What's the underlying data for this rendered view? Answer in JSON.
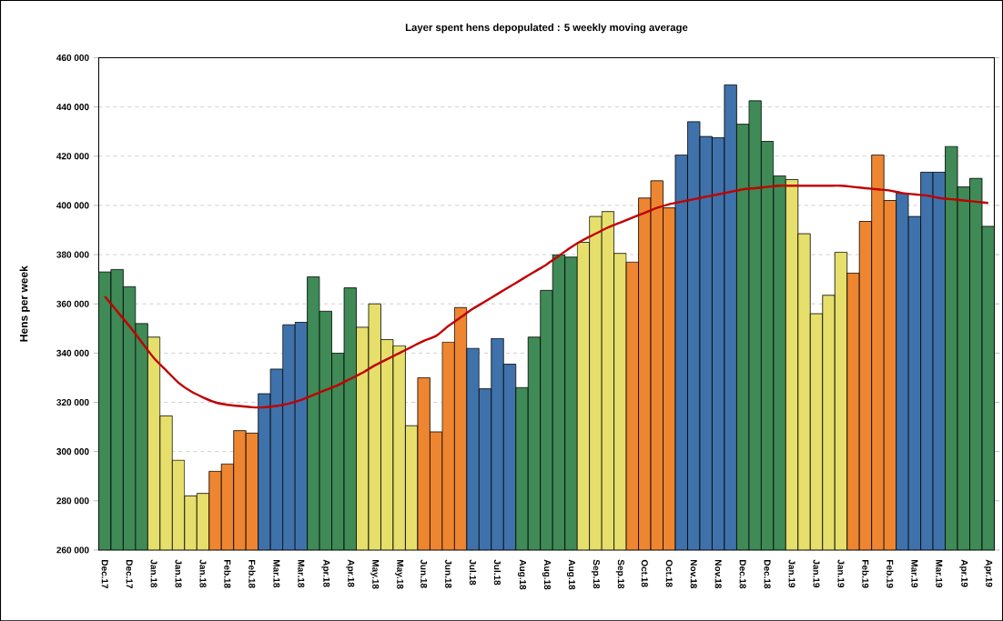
{
  "chart_data": {
    "type": "bar",
    "title": "Layer spent hens depopulated : 5 weekly moving average",
    "ylabel": "Hens per week",
    "categories": [
      "Dec.17",
      null,
      "Dec.17",
      null,
      "Jan.18",
      null,
      "Jan.18",
      null,
      "Jan.18",
      null,
      "Feb.18",
      null,
      "Feb.18",
      null,
      "Mar.18",
      null,
      "Mar.18",
      null,
      "Apr.18",
      null,
      "Apr.18",
      null,
      "May.18",
      null,
      "May.18",
      null,
      "Jun.18",
      null,
      "Jun.18",
      null,
      "Jul.18",
      null,
      "Jul.18",
      null,
      "Aug.18",
      null,
      "Aug.18",
      null,
      "Aug.18",
      null,
      "Sep.18",
      null,
      "Sep.18",
      null,
      "Oct.18",
      null,
      "Oct.18",
      null,
      "Nov.18",
      null,
      "Nov.18",
      null,
      "Dec.18",
      null,
      "Dec.18",
      null,
      "Jan.19",
      null,
      "Jan.19",
      null,
      "Jan.19",
      null,
      "Feb.19",
      null,
      "Feb.19",
      null,
      "Mar.19",
      null,
      "Mar.19",
      null,
      "Apr.19",
      null,
      "Apr.19"
    ],
    "series": [
      {
        "values": [
          373000,
          374000,
          367000,
          352000,
          346500,
          314500,
          296500,
          282000,
          283000,
          292000,
          295000,
          308500,
          307500,
          323500,
          333500,
          351500,
          352500,
          371000,
          357000,
          340000,
          366500,
          350500,
          360000,
          345500,
          343000,
          310500,
          330000,
          308000,
          344500,
          358500,
          342000,
          325500,
          346000,
          335500,
          326000,
          346500,
          365500,
          380000,
          379000,
          385000,
          395500,
          397500,
          380500,
          377000,
          403000,
          410000,
          399000,
          420500,
          434000,
          428000,
          427500,
          449000,
          433000,
          442500,
          426000,
          412000,
          410500,
          388500,
          356000,
          363500,
          381000,
          372500,
          393500,
          420500,
          402000,
          405000,
          395500,
          413500,
          413500,
          424000,
          407500,
          411000,
          391500
        ],
        "colors": [
          "#3f8a56",
          "#3f8a56",
          "#3f8a56",
          "#3f8a56",
          "#e6df6c",
          "#e6df6c",
          "#e6df6c",
          "#e6df6c",
          "#e6df6c",
          "#ee8530",
          "#ee8530",
          "#ee8530",
          "#ee8530",
          "#3f72aa",
          "#3f72aa",
          "#3f72aa",
          "#3f72aa",
          "#3f8a56",
          "#3f8a56",
          "#3f8a56",
          "#3f8a56",
          "#e6df6c",
          "#e6df6c",
          "#e6df6c",
          "#e6df6c",
          "#e6df6c",
          "#ee8530",
          "#ee8530",
          "#ee8530",
          "#ee8530",
          "#3f72aa",
          "#3f72aa",
          "#3f72aa",
          "#3f72aa",
          "#3f8a56",
          "#3f8a56",
          "#3f8a56",
          "#3f8a56",
          "#3f8a56",
          "#e6df6c",
          "#e6df6c",
          "#e6df6c",
          "#e6df6c",
          "#ee8530",
          "#ee8530",
          "#ee8530",
          "#ee8530",
          "#3f72aa",
          "#3f72aa",
          "#3f72aa",
          "#3f72aa",
          "#3f72aa",
          "#3f8a56",
          "#3f8a56",
          "#3f8a56",
          "#3f8a56",
          "#e6df6c",
          "#e6df6c",
          "#e6df6c",
          "#e6df6c",
          "#e6df6c",
          "#ee8530",
          "#ee8530",
          "#ee8530",
          "#ee8530",
          "#3f72aa",
          "#3f72aa",
          "#3f72aa",
          "#3f72aa",
          "#3f8a56",
          "#3f8a56",
          "#3f8a56",
          "#3f8a56"
        ]
      },
      {
        "type": "line",
        "color": "#c00000",
        "values": [
          363000,
          357000,
          351000,
          344500,
          338000,
          333000,
          328000,
          324500,
          322000,
          320000,
          319000,
          318500,
          318000,
          318000,
          318500,
          319500,
          321000,
          323000,
          325000,
          327000,
          329500,
          332000,
          335000,
          337500,
          340000,
          342500,
          345000,
          347000,
          351000,
          354500,
          358000,
          361000,
          364000,
          367000,
          370000,
          373000,
          376000,
          379500,
          383000,
          386000,
          388500,
          391000,
          393000,
          395000,
          397000,
          399000,
          400500,
          401500,
          402500,
          403500,
          404500,
          405500,
          406500,
          407000,
          407500,
          408000,
          408000,
          408000,
          408000,
          408000,
          408000,
          407500,
          407000,
          406500,
          406000,
          405000,
          404500,
          404000,
          403000,
          402500,
          402000,
          401500,
          401000
        ]
      }
    ],
    "ylim": [
      260000,
      460000
    ],
    "yticks": [
      {
        "value": 260000,
        "label": "260 000"
      },
      {
        "value": 280000,
        "label": "280 000"
      },
      {
        "value": 300000,
        "label": "300 000"
      },
      {
        "value": 320000,
        "label": "320 000"
      },
      {
        "value": 340000,
        "label": "340 000"
      },
      {
        "value": 360000,
        "label": "360 000"
      },
      {
        "value": 380000,
        "label": "380 000"
      },
      {
        "value": 400000,
        "label": "400 000"
      },
      {
        "value": 420000,
        "label": "420 000"
      },
      {
        "value": 440000,
        "label": "440 000"
      },
      {
        "value": 460000,
        "label": "460 000"
      }
    ],
    "grid": "y"
  }
}
